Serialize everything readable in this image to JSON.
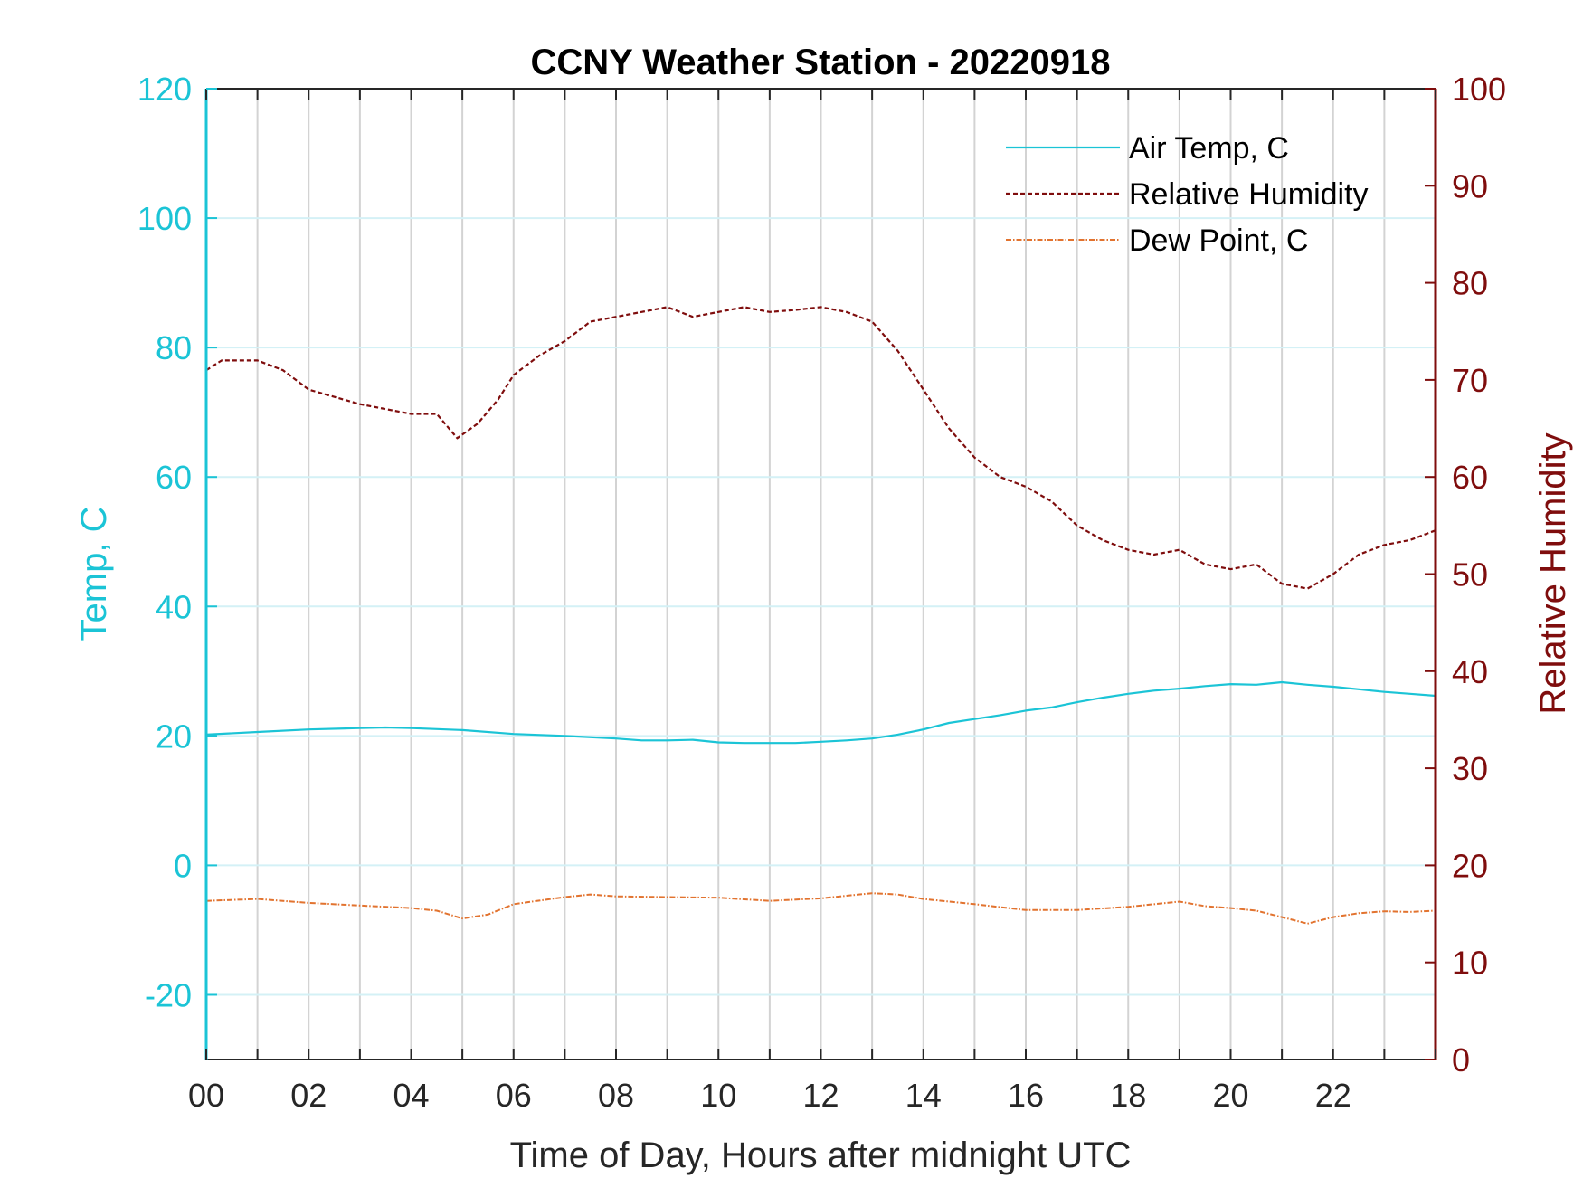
{
  "chart_data": {
    "type": "line",
    "title": "CCNY Weather Station - 20220918",
    "xlabel": "Time of Day, Hours after midnight UTC",
    "ylabel_left": "Temp, C",
    "ylabel_right": "Relative Humidity",
    "xlim": [
      0,
      24
    ],
    "ylim_left": [
      -30,
      120
    ],
    "ylim_right": [
      0,
      100
    ],
    "x_ticks": [
      0,
      2,
      4,
      6,
      8,
      10,
      12,
      14,
      16,
      18,
      20,
      22
    ],
    "x_tick_labels": [
      "00",
      "02",
      "04",
      "06",
      "08",
      "10",
      "12",
      "14",
      "16",
      "18",
      "20",
      "22"
    ],
    "y_ticks_left": [
      -20,
      0,
      20,
      40,
      60,
      80,
      100,
      120
    ],
    "y_tick_labels_left": [
      "-20",
      "0",
      "20",
      "40",
      "60",
      "80",
      "100",
      "120"
    ],
    "y_ticks_right": [
      0,
      10,
      20,
      30,
      40,
      50,
      60,
      70,
      80,
      90,
      100
    ],
    "y_tick_labels_right": [
      "0",
      "10",
      "20",
      "30",
      "40",
      "50",
      "60",
      "70",
      "80",
      "90",
      "100"
    ],
    "grid": true,
    "legend_position": "top-right",
    "colors": {
      "left_axis": "#1bc4d6",
      "right_axis": "#7f0d0d",
      "air_temp": "#1bc4d6",
      "humidity": "#7f0d0d",
      "dew_point": "#e2732f"
    },
    "series": [
      {
        "name": "Air Temp, C",
        "axis": "left",
        "style": "solid",
        "x": [
          0,
          1,
          2,
          3,
          3.5,
          4,
          5,
          6,
          7,
          8,
          8.5,
          9,
          9.5,
          10,
          10.5,
          11,
          11.5,
          12,
          12.5,
          13,
          13.5,
          14,
          14.5,
          15,
          15.5,
          16,
          16.5,
          17,
          17.5,
          18,
          18.5,
          19,
          19.5,
          20,
          20.5,
          21,
          21.5,
          22,
          22.5,
          23,
          23.5,
          24
        ],
        "values": [
          20.2,
          20.6,
          21.0,
          21.2,
          21.3,
          21.2,
          20.9,
          20.3,
          20.0,
          19.6,
          19.3,
          19.3,
          19.4,
          19.0,
          18.9,
          18.9,
          18.9,
          19.1,
          19.3,
          19.6,
          20.2,
          21.0,
          22.0,
          22.6,
          23.2,
          23.9,
          24.4,
          25.2,
          25.9,
          26.5,
          27.0,
          27.3,
          27.7,
          28.0,
          27.9,
          28.3,
          27.9,
          27.6,
          27.2,
          26.8,
          26.5,
          26.2
        ]
      },
      {
        "name": "Relative Humidity",
        "axis": "right",
        "style": "dashed",
        "x": [
          0,
          0.3,
          1,
          1.5,
          2,
          3,
          3.5,
          4,
          4.5,
          4.9,
          5.3,
          5.7,
          6,
          6.5,
          7,
          7.5,
          8,
          8.5,
          9,
          9.5,
          10,
          10.5,
          11,
          11.5,
          12,
          12.5,
          13,
          13.5,
          14,
          14.5,
          15,
          15.5,
          16,
          16.5,
          17,
          17.5,
          18,
          18.5,
          19,
          19.5,
          20,
          20.5,
          21,
          21.5,
          22,
          22.5,
          23,
          23.5,
          24
        ],
        "values": [
          71,
          72,
          72,
          71,
          69,
          67.5,
          67,
          66.5,
          66.5,
          64,
          65.5,
          68,
          70.5,
          72.5,
          74,
          76,
          76.5,
          77,
          77.5,
          76.5,
          77,
          77.5,
          77,
          77.2,
          77.5,
          77,
          76,
          73,
          69,
          65,
          62,
          60,
          59,
          57.5,
          55,
          53.5,
          52.5,
          52,
          52.5,
          51,
          50.5,
          51,
          49,
          48.5,
          50,
          52,
          53,
          53.5,
          54.5
        ]
      },
      {
        "name": "Dew Point, C",
        "axis": "left",
        "style": "dashdot",
        "x": [
          0,
          1,
          2,
          3,
          4,
          4.5,
          5,
          5.5,
          6,
          7,
          7.5,
          8,
          9,
          10,
          11,
          12,
          12.5,
          13,
          13.5,
          14,
          15,
          16,
          17,
          18,
          19,
          19.5,
          20,
          20.5,
          21,
          21.5,
          22,
          22.5,
          23,
          23.5,
          24
        ],
        "values": [
          -5.5,
          -5.2,
          -5.8,
          -6.2,
          -6.6,
          -7.0,
          -8.2,
          -7.6,
          -6.0,
          -4.9,
          -4.5,
          -4.8,
          -4.9,
          -5.0,
          -5.5,
          -5.1,
          -4.7,
          -4.3,
          -4.5,
          -5.2,
          -6.0,
          -6.9,
          -6.9,
          -6.4,
          -5.6,
          -6.3,
          -6.6,
          -7.0,
          -8.0,
          -9.0,
          -8.0,
          -7.4,
          -7.1,
          -7.2,
          -7.0
        ]
      }
    ]
  }
}
